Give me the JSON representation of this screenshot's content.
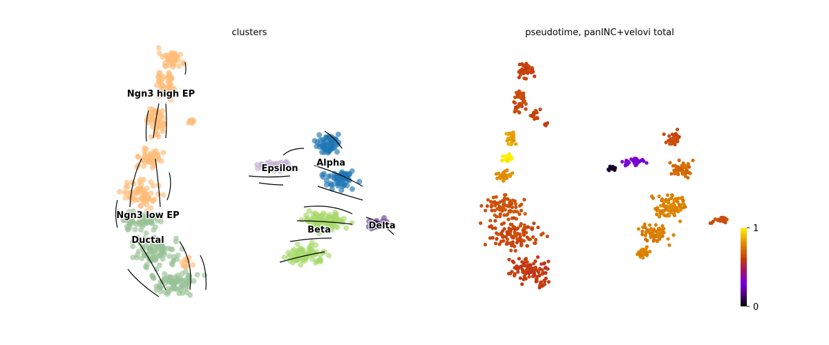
{
  "chart_data": [
    {
      "type": "scatter",
      "title": "clusters",
      "colored_by": "cluster",
      "overlay": "velocity streamlines",
      "clusters": [
        {
          "name": "Ngn3 high EP",
          "color": "#ffbb78"
        },
        {
          "name": "Ngn3 low EP",
          "color": "#f7b6d2"
        },
        {
          "name": "Ductal",
          "color": "#98c197"
        },
        {
          "name": "Alpha",
          "color": "#1f77b4"
        },
        {
          "name": "Beta",
          "color": "#a6d96a"
        },
        {
          "name": "Epsilon",
          "color": "#c5b0d5"
        },
        {
          "name": "Delta",
          "color": "#6a3d9a"
        }
      ],
      "axes_visible": false
    },
    {
      "type": "scatter",
      "title": "pseudotime, panINC+velovi total",
      "colored_by": "pseudotime",
      "colormap": "gnuplot",
      "colorbar": {
        "min": 0,
        "max": 1,
        "tick_labels": [
          "0",
          "1"
        ],
        "placement": "right"
      },
      "axes_visible": false
    }
  ],
  "colors": {
    "streamline": "#000000",
    "ductal_hex": "#98c197"
  }
}
